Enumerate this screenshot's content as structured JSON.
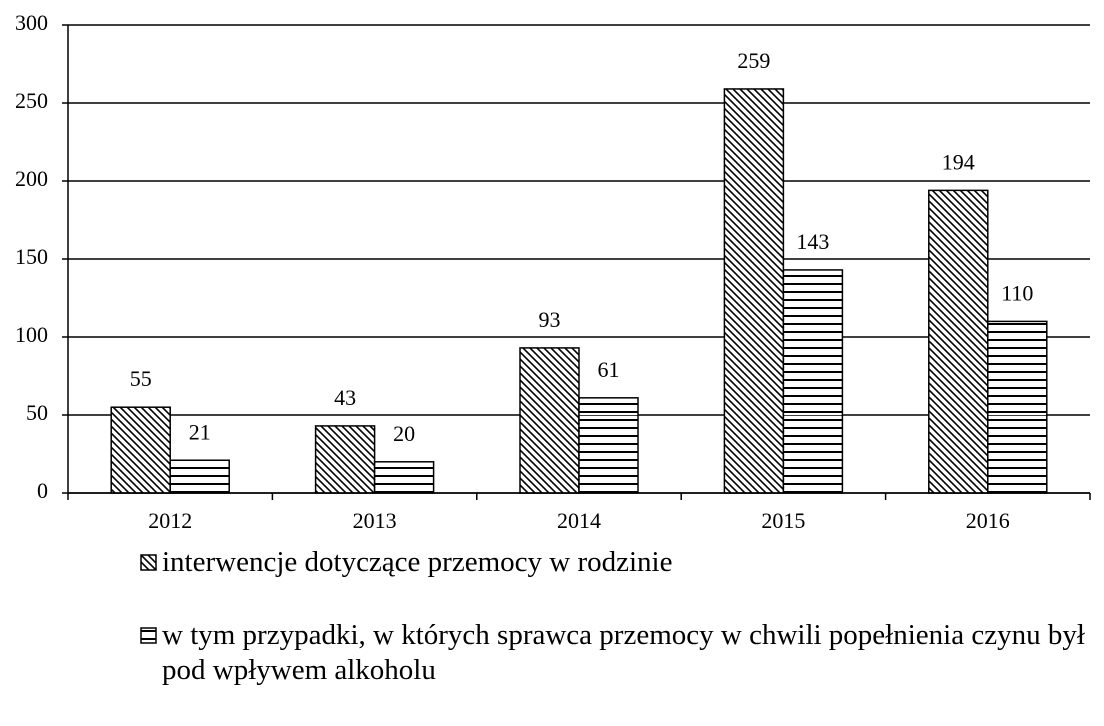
{
  "chart_data": {
    "type": "bar",
    "categories": [
      "2012",
      "2013",
      "2014",
      "2015",
      "2016"
    ],
    "series": [
      {
        "name": "interwencje dotyczące przemocy w rodzinie",
        "color": "#000000",
        "pattern": "diagonal",
        "values": [
          55,
          43,
          93,
          259,
          194
        ]
      },
      {
        "name": "w tym przypadki, w których sprawca przemocy w chwili popełnienia czynu był pod wpływem alkoholu",
        "color": "#000000",
        "pattern": "horizontal",
        "values": [
          21,
          20,
          61,
          143,
          110
        ]
      }
    ],
    "ylim": [
      0,
      300
    ],
    "yticks": [
      0,
      50,
      100,
      150,
      200,
      250,
      300
    ],
    "grid": true,
    "legend": "bottom"
  }
}
